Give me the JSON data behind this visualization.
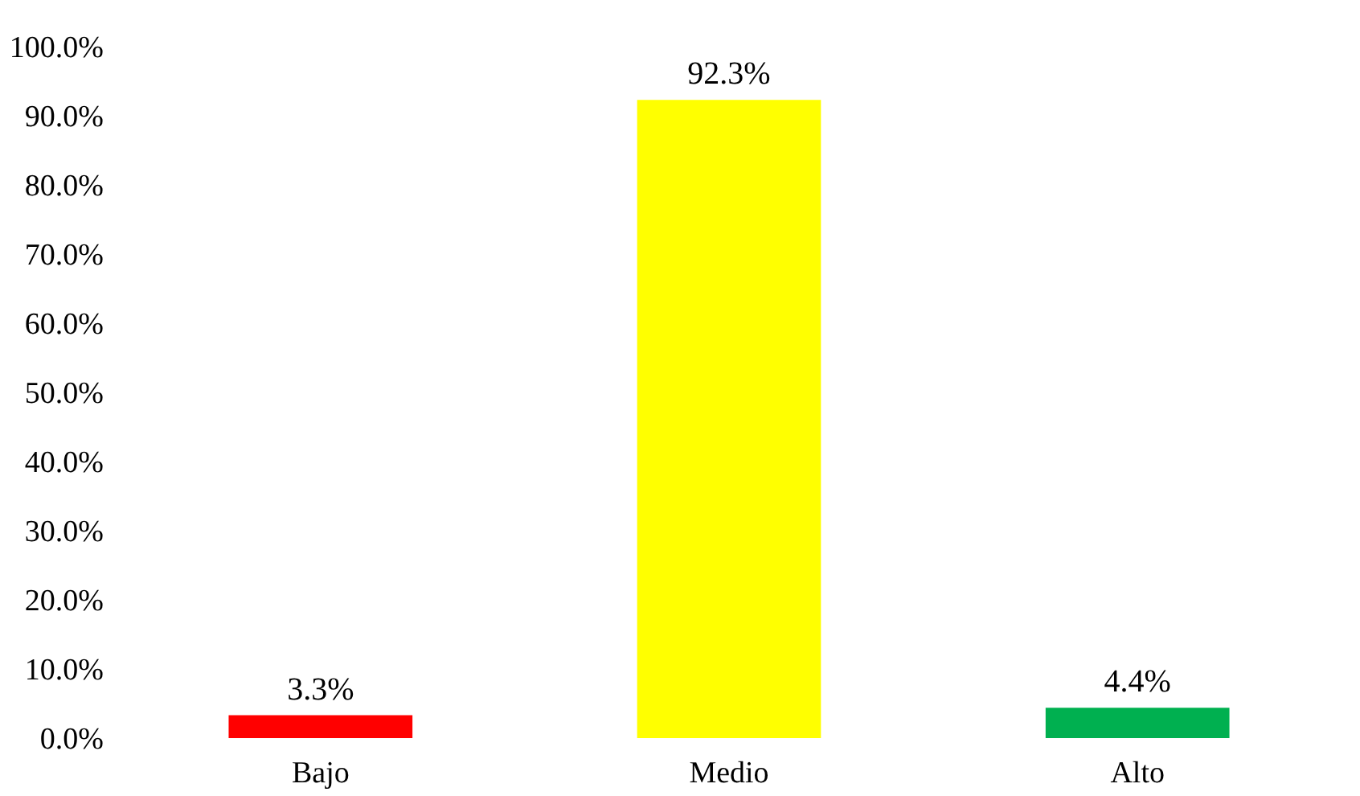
{
  "chart_data": {
    "type": "bar",
    "categories": [
      "Bajo",
      "Medio",
      "Alto"
    ],
    "values": [
      3.3,
      92.3,
      4.4
    ],
    "colors": [
      "#ff0000",
      "#ffff00",
      "#00b050"
    ],
    "value_labels": [
      "3.3%",
      "92.3%",
      "4.4%"
    ],
    "ylim": [
      0,
      100
    ],
    "yticks": [
      {
        "value": 0,
        "label": "0.0%"
      },
      {
        "value": 10,
        "label": "10.0%"
      },
      {
        "value": 20,
        "label": "20.0%"
      },
      {
        "value": 30,
        "label": "30.0%"
      },
      {
        "value": 40,
        "label": "40.0%"
      },
      {
        "value": 50,
        "label": "50.0%"
      },
      {
        "value": 60,
        "label": "60.0%"
      },
      {
        "value": 70,
        "label": "70.0%"
      },
      {
        "value": 80,
        "label": "80.0%"
      },
      {
        "value": 90,
        "label": "90.0%"
      },
      {
        "value": 100,
        "label": "100.0%"
      }
    ],
    "grid": false
  }
}
